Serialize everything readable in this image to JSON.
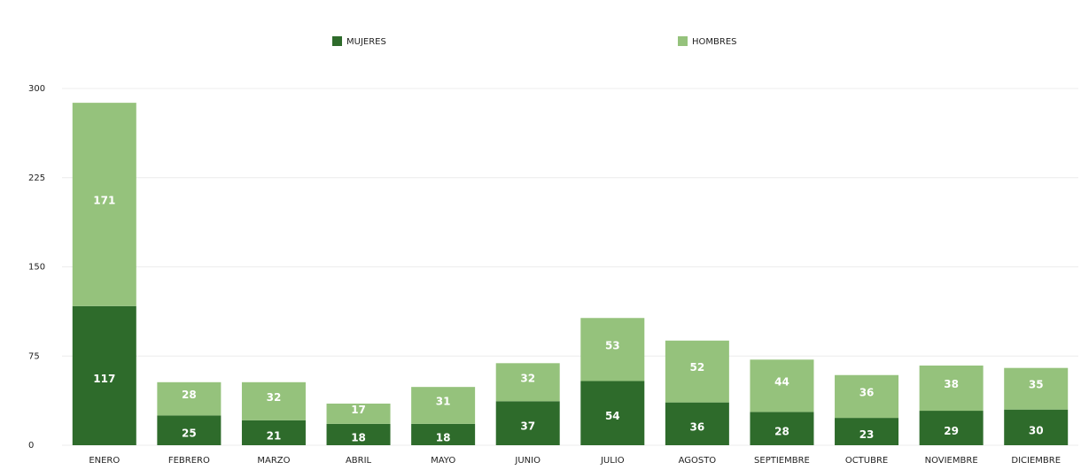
{
  "chart_data": {
    "type": "stacked_bar",
    "categories": [
      "ENERO",
      "FEBRERO",
      "MARZO",
      "ABRIL",
      "MAYO",
      "JUNIO",
      "JULIO",
      "AGOSTO",
      "SEPTIEMBRE",
      "OCTUBRE",
      "NOVIEMBRE",
      "DICIEMBRE"
    ],
    "series": [
      {
        "name": "MUJERES",
        "color": "#2e6b2b",
        "values": [
          117,
          25,
          21,
          18,
          18,
          37,
          54,
          36,
          28,
          23,
          29,
          30
        ]
      },
      {
        "name": "HOMBRES",
        "color": "#95c27c",
        "values": [
          171,
          28,
          32,
          17,
          31,
          32,
          53,
          52,
          44,
          36,
          38,
          35
        ]
      }
    ],
    "ylim": [
      0,
      300
    ],
    "yticks": [
      0,
      75,
      150,
      225,
      300
    ],
    "grid": true
  }
}
